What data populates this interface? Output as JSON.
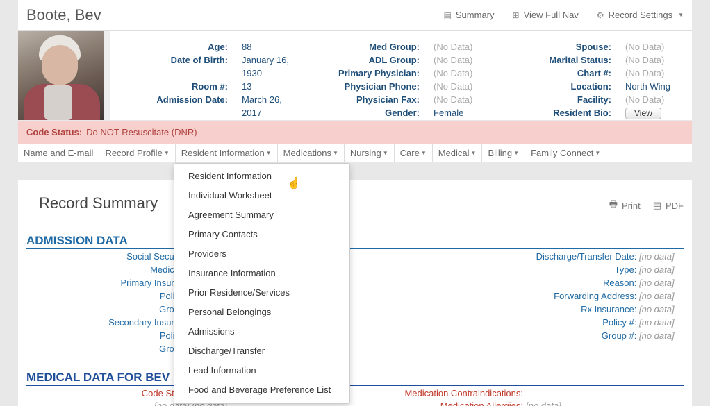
{
  "header": {
    "name": "Boote, Bev",
    "links": [
      {
        "icon": "summary-icon",
        "label": "Summary"
      },
      {
        "icon": "nav-icon",
        "label": "View Full Nav"
      },
      {
        "icon": "gear-icon",
        "label": "Record Settings"
      }
    ]
  },
  "info": {
    "col1": [
      {
        "label": "Age:",
        "value": "88"
      },
      {
        "label": "Date of Birth:",
        "value": "January 16,"
      },
      {
        "label": "",
        "value": "1930"
      },
      {
        "label": "Room #:",
        "value": "13"
      },
      {
        "label": "Admission Date:",
        "value": "March 26,"
      },
      {
        "label": "",
        "value": "2017"
      }
    ],
    "col2": [
      {
        "label": "Med Group:",
        "value": "(No Data)"
      },
      {
        "label": "ADL Group:",
        "value": "(No Data)"
      },
      {
        "label": "Primary Physician:",
        "value": "(No Data)"
      },
      {
        "label": "Physician Phone:",
        "value": "(No Data)"
      },
      {
        "label": "Physician Fax:",
        "value": "(No Data)"
      },
      {
        "label": "Gender:",
        "value": "Female"
      }
    ],
    "col3": [
      {
        "label": "Spouse:",
        "value": "(No Data)"
      },
      {
        "label": "Marital Status:",
        "value": "(No Data)"
      },
      {
        "label": "Chart #:",
        "value": "(No Data)"
      },
      {
        "label": "Location:",
        "value": "North Wing"
      },
      {
        "label": "Facility:",
        "value": "(No Data)"
      },
      {
        "label": "Resident Bio:",
        "value": "View"
      }
    ]
  },
  "code_status": {
    "label": "Code Status:",
    "value": "Do NOT Resuscitate (DNR)"
  },
  "tabs": [
    "Name and E-mail",
    "Record Profile",
    "Resident Information",
    "Medications",
    "Nursing",
    "Care",
    "Medical",
    "Billing",
    "Family Connect"
  ],
  "summary": {
    "title": "Record Summary",
    "print": "Print",
    "pdf": "PDF"
  },
  "admission": {
    "heading": "ADMISSION DATA",
    "left_labels": [
      "Social Securi",
      "Medica",
      "Primary Insura",
      "Polic",
      "Grou",
      "Secondary Insura",
      "Polic",
      "Grou"
    ],
    "right": [
      {
        "label": "Discharge/Transfer Date:",
        "value": "[no data]"
      },
      {
        "label": "Type:",
        "value": "[no data]"
      },
      {
        "label": "Reason:",
        "value": "[no data]"
      },
      {
        "label": "Forwarding Address:",
        "value": "[no data]"
      },
      {
        "label": "Rx Insurance:",
        "value": "[no data]"
      },
      {
        "label": "Policy #:",
        "value": "[no data]"
      },
      {
        "label": "Group #:",
        "value": "[no data]"
      }
    ]
  },
  "medical": {
    "heading": "MEDICAL DATA FOR BEV",
    "code_sta": "Code Sta",
    "contra": "Medication Contraindications:",
    "allergies": "Medication Allergies:",
    "allergies_val": "[no data]",
    "cut_vals": "[no data] [no data]"
  },
  "dropdown": [
    "Resident Information",
    "Individual Worksheet",
    "Agreement Summary",
    "Primary Contacts",
    "Providers",
    "Insurance Information",
    "Prior Residence/Services",
    "Personal Belongings",
    "Admissions",
    "Discharge/Transfer",
    "Lead Information",
    "Food and Beverage Preference List"
  ]
}
